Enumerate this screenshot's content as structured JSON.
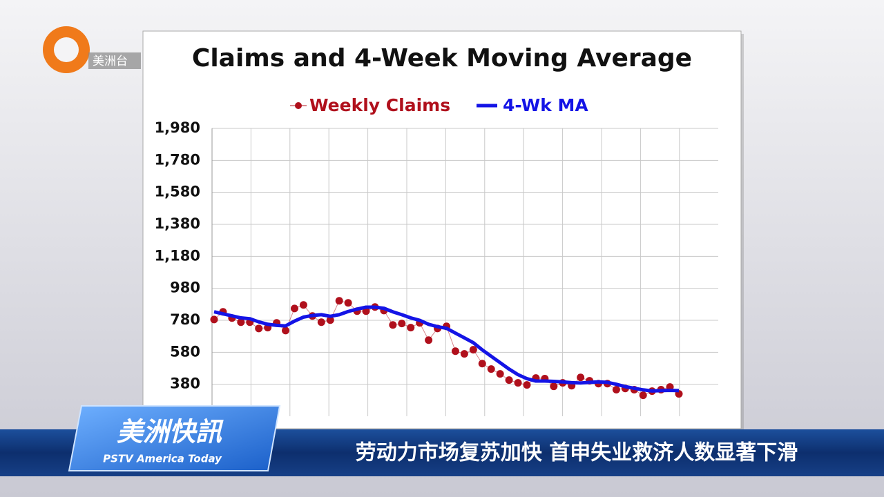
{
  "broadcast": {
    "logo": "美洲台",
    "program": "美洲快訊",
    "program_en": "PSTV America Today",
    "headline": "劳动力市场复苏加快  首申失业救济人数显著下滑"
  },
  "chart_data": {
    "type": "line",
    "title": "Claims and 4-Week Moving Average",
    "categories": [
      null,
      null,
      null,
      null,
      null,
      null,
      null,
      null,
      null,
      null,
      null,
      null,
      null,
      null,
      null,
      null,
      null,
      null,
      null,
      null,
      null,
      null,
      null,
      null,
      null,
      null,
      null,
      null,
      null,
      null,
      null,
      null,
      null,
      null,
      null,
      null,
      null,
      null,
      null,
      null,
      null,
      null,
      null,
      null,
      null,
      null,
      null,
      null,
      null,
      null,
      null,
      null,
      null
    ],
    "series": [
      {
        "name": "Weekly Claims",
        "color": "#b0101c",
        "marker": true,
        "values": [
          785,
          833,
          794,
          768,
          768,
          729,
          734,
          764,
          716,
          854,
          876,
          807,
          768,
          781,
          902,
          889,
          837,
          837,
          863,
          841,
          751,
          760,
          734,
          764,
          656,
          729,
          742,
          587,
          570,
          596,
          509,
          475,
          445,
          406,
          389,
          376,
          419,
          415,
          367,
          389,
          371,
          423,
          402,
          384,
          384,
          346,
          354,
          346,
          311,
          337,
          346,
          363,
          320
        ]
      },
      {
        "name": "4-Wk MA",
        "color": "#1414e6",
        "marker": false,
        "values": [
          833,
          820,
          808,
          795,
          790,
          770,
          755,
          748,
          745,
          775,
          800,
          810,
          815,
          805,
          815,
          835,
          850,
          862,
          862,
          855,
          833,
          815,
          795,
          780,
          755,
          740,
          730,
          700,
          670,
          640,
          595,
          555,
          515,
          475,
          440,
          415,
          400,
          400,
          398,
          395,
          390,
          388,
          392,
          395,
          392,
          380,
          365,
          355,
          345,
          338,
          340,
          342,
          340
        ]
      }
    ],
    "ylim": [
      180,
      1980
    ],
    "yticks": [
      380,
      580,
      780,
      980,
      {
        "value": 1180,
        "label": "1,180"
      },
      {
        "value": 1380,
        "label": "1,380"
      },
      {
        "value": 1580,
        "label": "1,580"
      },
      {
        "value": 1780,
        "label": "1,780"
      },
      {
        "value": 1980,
        "label": "1,980"
      }
    ],
    "grid": true,
    "legend": "top"
  }
}
